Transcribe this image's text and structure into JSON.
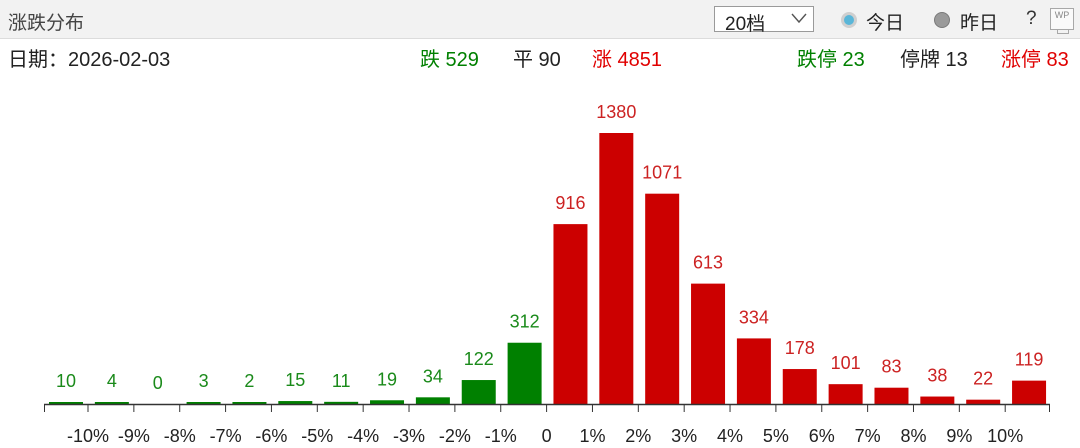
{
  "header": {
    "title": "涨跌分布",
    "dropdown_value": "20档",
    "radio_today": "今日",
    "radio_yesterday": "昨日",
    "help": "?",
    "wp_icon_text": "WP"
  },
  "stats": {
    "date_label": "日期：2026-02-03",
    "down": "跌 529",
    "flat": "平 90",
    "up": "涨 4851",
    "limit_down": "跌停 23",
    "suspended": "停牌 13",
    "limit_up": "涨停 83"
  },
  "colors": {
    "up": "#cc0000",
    "down": "#008000",
    "label_up": "#cc2222",
    "label_down": "#1a8a1a",
    "axis": "#333333"
  },
  "chart_data": {
    "type": "bar",
    "title": "涨跌分布",
    "values": [
      10,
      4,
      0,
      3,
      2,
      15,
      11,
      19,
      34,
      122,
      312,
      916,
      1380,
      1071,
      613,
      334,
      178,
      101,
      83,
      38,
      22,
      119
    ],
    "bar_colors": [
      "down",
      "down",
      "down",
      "down",
      "down",
      "down",
      "down",
      "down",
      "down",
      "down",
      "down",
      "up",
      "up",
      "up",
      "up",
      "up",
      "up",
      "up",
      "up",
      "up",
      "up",
      "up"
    ],
    "ticks": [
      "-10%",
      "-9%",
      "-8%",
      "-7%",
      "-6%",
      "-5%",
      "-4%",
      "-3%",
      "-2%",
      "-1%",
      "0",
      "1%",
      "2%",
      "3%",
      "4%",
      "5%",
      "6%",
      "7%",
      "8%",
      "9%",
      "10%"
    ],
    "ylim": [
      0,
      1380
    ],
    "grid": false,
    "legend": "none"
  }
}
